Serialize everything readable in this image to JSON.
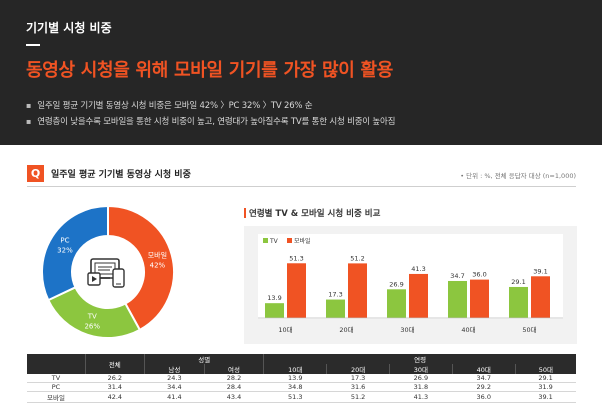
{
  "header": {
    "label": "기기별 시청 비중",
    "title": "동영상 시청을 위해 모바일 기기를 가장 많이 활용",
    "bullets": [
      "일주일 평균 기기별 동영상 시청 비중은 모바일 42% 〉PC 32% 〉TV 26% 순",
      "연령층이 낮을수록 모바일을 통한 시청 비중이 높고, 연령대가 높아질수록 TV를 통한 시청 비중이 높아짐"
    ]
  },
  "question": {
    "badge": "Q",
    "title": "일주일 평균 기기별 동영상 시청 비중",
    "note": "• 단위 : %, 전체 응답자 대상 (n=1,000)"
  },
  "colors": {
    "tv": "#8cc63f",
    "mobile": "#f05323",
    "pc": "#1d73c7",
    "accent": "#f05323"
  },
  "chart_data": [
    {
      "type": "pie",
      "title": "",
      "slices": [
        {
          "name": "모바일",
          "value": 42,
          "label": "42%",
          "color": "#f05323"
        },
        {
          "name": "TV",
          "value": 26,
          "label": "26%",
          "color": "#8cc63f"
        },
        {
          "name": "PC",
          "value": 32,
          "label": "32%",
          "color": "#1d73c7"
        }
      ],
      "center_icon": "devices-icon"
    },
    {
      "type": "bar",
      "title": "연령별 TV & 모바일 시청 비중 비교",
      "categories": [
        "10대",
        "20대",
        "30대",
        "40대",
        "50대"
      ],
      "series": [
        {
          "name": "TV",
          "values": [
            13.9,
            17.3,
            26.9,
            34.7,
            29.1
          ],
          "color": "#8cc63f"
        },
        {
          "name": "모바일",
          "values": [
            51.3,
            51.2,
            41.3,
            36.0,
            39.1
          ],
          "color": "#f05323"
        }
      ],
      "ylim": [
        0,
        60
      ],
      "legend": "top-left",
      "grid": false
    }
  ],
  "table": {
    "group_headers": {
      "total": "전체",
      "gender": "성별",
      "age": "연령"
    },
    "sub_headers": [
      "남성",
      "여성",
      "10대",
      "20대",
      "30대",
      "40대",
      "50대"
    ],
    "rows": [
      {
        "label": "TV",
        "values": [
          "26.2",
          "24.3",
          "28.2",
          "13.9",
          "17.3",
          "26.9",
          "34.7",
          "29.1"
        ]
      },
      {
        "label": "PC",
        "values": [
          "31.4",
          "34.4",
          "28.4",
          "34.8",
          "31.6",
          "31.8",
          "29.2",
          "31.9"
        ]
      },
      {
        "label": "모바일",
        "values": [
          "42.4",
          "41.4",
          "43.4",
          "51.3",
          "51.2",
          "41.3",
          "36.0",
          "39.1"
        ]
      }
    ]
  }
}
